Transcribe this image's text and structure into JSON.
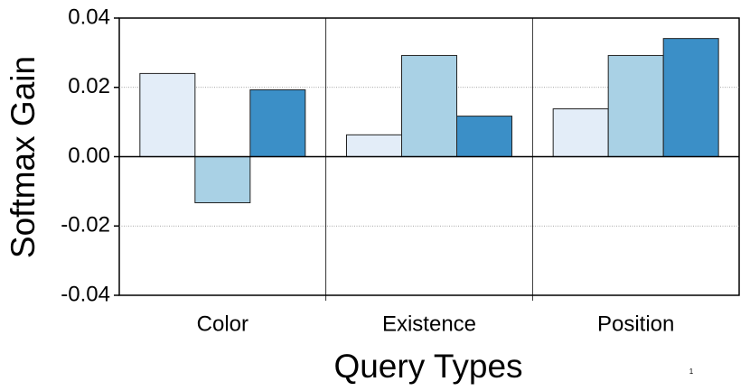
{
  "chart_data": {
    "type": "bar",
    "x_label": "Query Types",
    "y_label": "Softmax Gain",
    "categories": [
      "Color",
      "Existence",
      "Position"
    ],
    "series": [
      {
        "color": "#e3edf8",
        "values": [
          0.024,
          0.0063,
          0.0138
        ]
      },
      {
        "color": "#a9d1e5",
        "values": [
          -0.0133,
          0.0292,
          0.0292
        ]
      },
      {
        "color": "#3b8fc7",
        "values": [
          0.0193,
          0.0117,
          0.0341
        ]
      }
    ],
    "ylim": [
      -0.04,
      0.04
    ],
    "yticks": [
      -0.04,
      -0.02,
      {
        "value": 0,
        "label": "0.00"
      },
      0.02,
      0.04
    ],
    "grid": true,
    "annotation": "1"
  }
}
